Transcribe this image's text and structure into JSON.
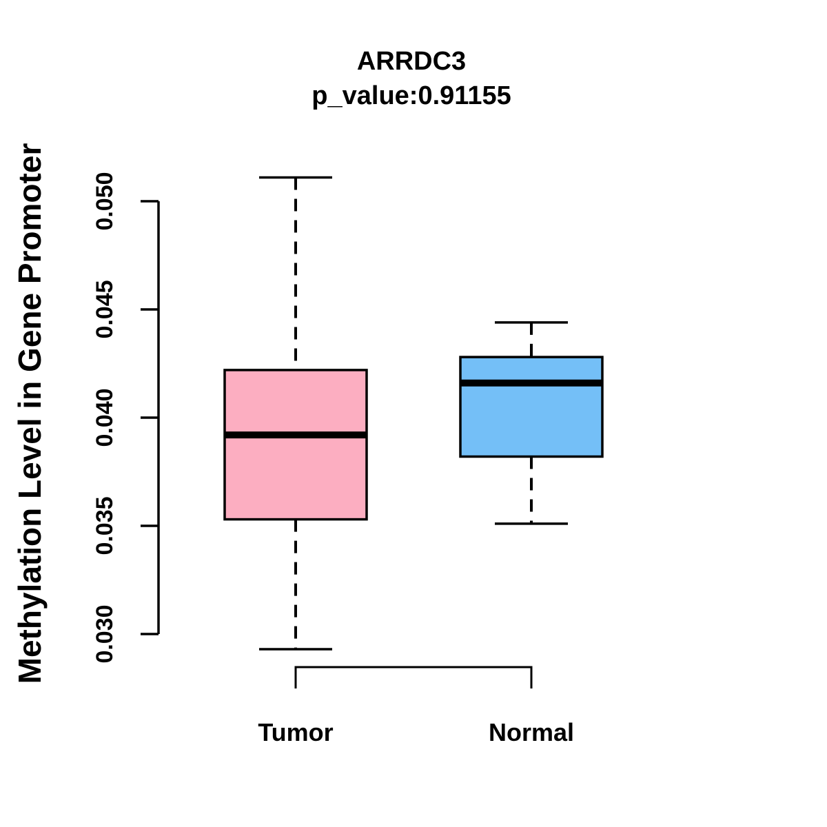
{
  "chart_data": {
    "type": "boxplot",
    "title": "ARRDC3",
    "subtitle": "p_value:0.91155",
    "ylabel": "Methylation Level in Gene Promoter",
    "xlabel": "",
    "ylim": [
      0.03,
      0.05
    ],
    "ytick_values": [
      0.03,
      0.035,
      0.04,
      0.045,
      0.05
    ],
    "ytick_labels": [
      "0.030",
      "0.035",
      "0.040",
      "0.045",
      "0.050"
    ],
    "categories": [
      "Tumor",
      "Normal"
    ],
    "series": [
      {
        "name": "Tumor",
        "fill_color": "#FCAEC1",
        "whisker_low": 0.0293,
        "q1": 0.0353,
        "median": 0.0392,
        "q3": 0.0422,
        "whisker_high": 0.0511,
        "outliers": []
      },
      {
        "name": "Normal",
        "fill_color": "#74BFF7",
        "whisker_low": 0.0351,
        "q1": 0.0382,
        "median": 0.0416,
        "q3": 0.0428,
        "whisker_high": 0.0444,
        "outliers": []
      }
    ],
    "line_color": "#000000",
    "grid": false,
    "legend": "none",
    "comparison_bracket": {
      "from": "Tumor",
      "to": "Normal"
    }
  }
}
